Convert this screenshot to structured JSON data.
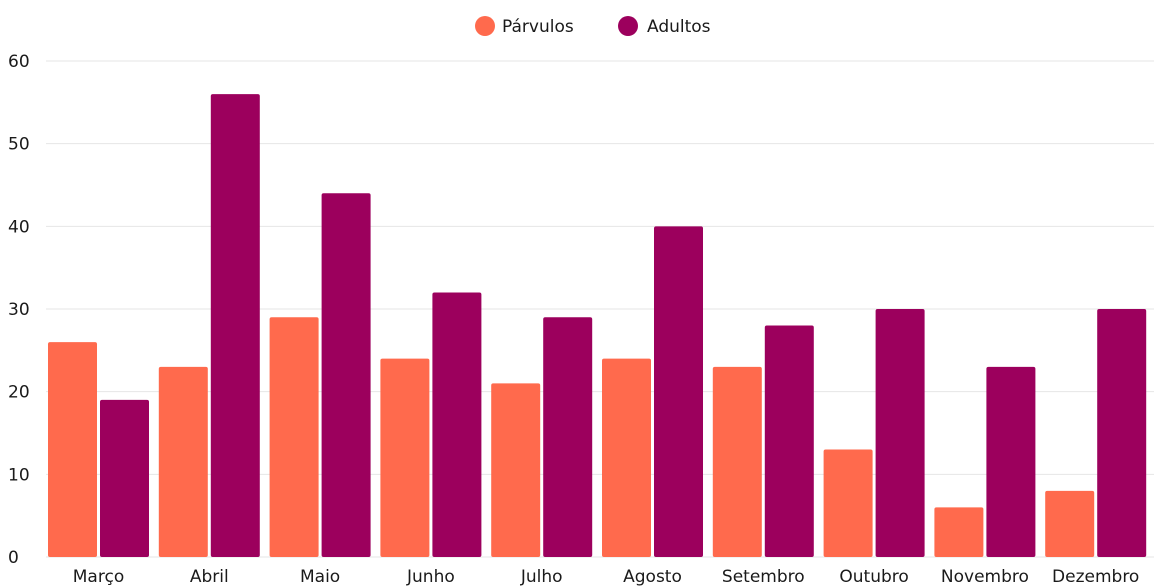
{
  "chart_data": {
    "type": "bar",
    "categories": [
      "Março",
      "Abril",
      "Maio",
      "Junho",
      "Julho",
      "Agosto",
      "Setembro",
      "Outubro",
      "Novembro",
      "Dezembro"
    ],
    "series": [
      {
        "name": "Párvulos",
        "color": "#ff6a4d",
        "values": [
          26,
          23,
          29,
          24,
          21,
          24,
          23,
          13,
          6,
          8
        ]
      },
      {
        "name": "Adultos",
        "color": "#9c005d",
        "values": [
          19,
          56,
          44,
          32,
          29,
          40,
          28,
          30,
          23,
          30
        ]
      }
    ],
    "yticks": [
      0,
      10,
      20,
      30,
      40,
      50,
      60
    ],
    "ylim": [
      0,
      60
    ],
    "grid": true,
    "legend_position": "top-center"
  }
}
